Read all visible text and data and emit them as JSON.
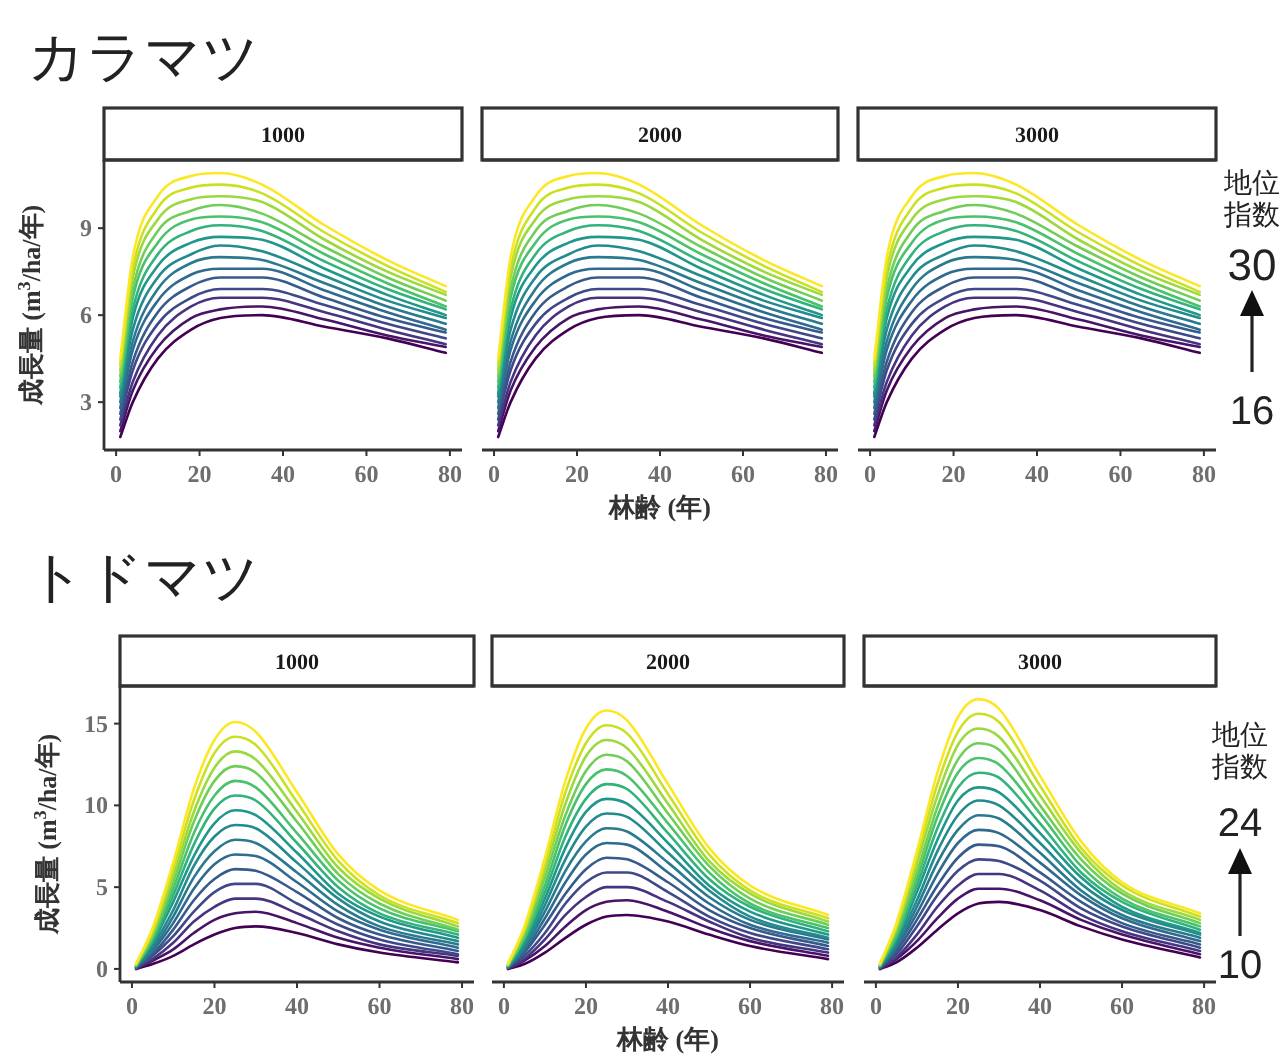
{
  "chart_data": [
    {
      "type": "line",
      "title": "1000",
      "ylabel": "成長量 (m$^{3}$/ha/年)",
      "annotations": [
        "カラマツ"
      ],
      "xlim": [
        -2.9,
        82.9
      ],
      "xticks": [
        0,
        20,
        40,
        60,
        80
      ],
      "ylim": [
        1.35,
        11.35
      ],
      "yticks": [
        3,
        6,
        9
      ],
      "x": [
        1,
        4,
        10,
        18,
        25,
        35,
        50,
        65,
        79
      ],
      "series": [
        {
          "color": "#440154",
          "values": [
            1.8,
            3.0,
            4.5,
            5.5,
            5.9,
            6.0,
            5.6,
            5.2,
            4.7
          ]
        },
        {
          "color": "#471467",
          "values": [
            2.0,
            3.4,
            4.9,
            5.9,
            6.2,
            6.3,
            5.85,
            5.3,
            4.9
          ]
        },
        {
          "color": "#463480",
          "values": [
            2.2,
            3.7,
            5.3,
            6.3,
            6.6,
            6.6,
            6.1,
            5.5,
            5.0
          ]
        },
        {
          "color": "#3f4889",
          "values": [
            2.4,
            4.1,
            5.7,
            6.6,
            6.9,
            6.9,
            6.35,
            5.7,
            5.2
          ]
        },
        {
          "color": "#375a8c",
          "values": [
            2.6,
            4.4,
            6.1,
            7.0,
            7.3,
            7.3,
            6.6,
            5.9,
            5.4
          ]
        },
        {
          "color": "#2f6b8e",
          "values": [
            2.8,
            4.8,
            6.5,
            7.4,
            7.6,
            7.6,
            6.85,
            6.1,
            5.5
          ]
        },
        {
          "color": "#297a8e",
          "values": [
            3.0,
            5.1,
            6.9,
            7.8,
            8.0,
            7.9,
            7.1,
            6.3,
            5.7
          ]
        },
        {
          "color": "#238a8d",
          "values": [
            3.2,
            5.5,
            7.3,
            8.1,
            8.4,
            8.2,
            7.35,
            6.5,
            5.9
          ]
        },
        {
          "color": "#1f988b",
          "values": [
            3.3,
            5.9,
            7.7,
            8.5,
            8.7,
            8.6,
            7.6,
            6.7,
            6.0
          ]
        },
        {
          "color": "#32b37b",
          "values": [
            3.5,
            6.2,
            8.1,
            8.9,
            9.1,
            8.9,
            7.85,
            6.9,
            6.2
          ]
        },
        {
          "color": "#4ac16d",
          "values": [
            3.7,
            6.6,
            8.5,
            9.3,
            9.4,
            9.2,
            8.1,
            7.1,
            6.3
          ]
        },
        {
          "color": "#70ce58",
          "values": [
            3.9,
            6.9,
            8.9,
            9.6,
            9.8,
            9.5,
            8.35,
            7.3,
            6.5
          ]
        },
        {
          "color": "#9bd93c",
          "values": [
            4.1,
            7.3,
            9.3,
            10.0,
            10.1,
            9.9,
            8.6,
            7.5,
            6.7
          ]
        },
        {
          "color": "#c9e121",
          "values": [
            4.3,
            7.6,
            9.7,
            10.4,
            10.5,
            10.2,
            8.85,
            7.7,
            6.8
          ]
        },
        {
          "color": "#fde725",
          "values": [
            4.5,
            8.0,
            10.1,
            10.8,
            10.9,
            10.5,
            9.1,
            7.9,
            7.0
          ]
        }
      ]
    },
    {
      "type": "line",
      "title": "2000",
      "xlabel": "林齢 (年)",
      "tick_labels": "x",
      "xlim": [
        -2.9,
        82.9
      ],
      "xticks": [
        0,
        20,
        40,
        60,
        80
      ],
      "ylim": [
        1.35,
        11.35
      ],
      "yticks": [
        3,
        6,
        9
      ],
      "x": [
        1,
        4,
        10,
        18,
        25,
        35,
        50,
        65,
        79
      ],
      "series": [
        {
          "color": "#440154",
          "values": [
            1.8,
            3.0,
            4.5,
            5.5,
            5.9,
            6.0,
            5.6,
            5.2,
            4.7
          ]
        },
        {
          "color": "#471467",
          "values": [
            2.0,
            3.4,
            4.9,
            5.9,
            6.2,
            6.3,
            5.85,
            5.3,
            4.9
          ]
        },
        {
          "color": "#463480",
          "values": [
            2.2,
            3.7,
            5.3,
            6.3,
            6.6,
            6.6,
            6.1,
            5.5,
            5.0
          ]
        },
        {
          "color": "#3f4889",
          "values": [
            2.4,
            4.1,
            5.7,
            6.6,
            6.9,
            6.9,
            6.35,
            5.7,
            5.2
          ]
        },
        {
          "color": "#375a8c",
          "values": [
            2.6,
            4.4,
            6.1,
            7.0,
            7.3,
            7.3,
            6.6,
            5.9,
            5.4
          ]
        },
        {
          "color": "#2f6b8e",
          "values": [
            2.8,
            4.8,
            6.5,
            7.4,
            7.6,
            7.6,
            6.85,
            6.1,
            5.5
          ]
        },
        {
          "color": "#297a8e",
          "values": [
            3.0,
            5.1,
            6.9,
            7.8,
            8.0,
            7.9,
            7.1,
            6.3,
            5.7
          ]
        },
        {
          "color": "#238a8d",
          "values": [
            3.2,
            5.5,
            7.3,
            8.1,
            8.4,
            8.2,
            7.35,
            6.5,
            5.9
          ]
        },
        {
          "color": "#1f988b",
          "values": [
            3.3,
            5.9,
            7.7,
            8.5,
            8.7,
            8.6,
            7.6,
            6.7,
            6.0
          ]
        },
        {
          "color": "#32b37b",
          "values": [
            3.5,
            6.2,
            8.1,
            8.9,
            9.1,
            8.9,
            7.85,
            6.9,
            6.2
          ]
        },
        {
          "color": "#4ac16d",
          "values": [
            3.7,
            6.6,
            8.5,
            9.3,
            9.4,
            9.2,
            8.1,
            7.1,
            6.3
          ]
        },
        {
          "color": "#70ce58",
          "values": [
            3.9,
            6.9,
            8.9,
            9.6,
            9.8,
            9.5,
            8.35,
            7.3,
            6.5
          ]
        },
        {
          "color": "#9bd93c",
          "values": [
            4.1,
            7.3,
            9.3,
            10.0,
            10.1,
            9.9,
            8.6,
            7.5,
            6.7
          ]
        },
        {
          "color": "#c9e121",
          "values": [
            4.3,
            7.6,
            9.7,
            10.4,
            10.5,
            10.2,
            8.85,
            7.7,
            6.8
          ]
        },
        {
          "color": "#fde725",
          "values": [
            4.5,
            8.0,
            10.1,
            10.8,
            10.9,
            10.5,
            9.1,
            7.9,
            7.0
          ]
        }
      ]
    },
    {
      "type": "line",
      "title": "3000",
      "tick_labels": "x",
      "annotations": [
        "地位指数",
        "30",
        "16"
      ],
      "xlim": [
        -2.9,
        82.9
      ],
      "xticks": [
        0,
        20,
        40,
        60,
        80
      ],
      "ylim": [
        1.35,
        11.35
      ],
      "yticks": [
        3,
        6,
        9
      ],
      "x": [
        1,
        4,
        10,
        18,
        25,
        35,
        50,
        65,
        79
      ],
      "series": [
        {
          "color": "#440154",
          "values": [
            1.8,
            3.0,
            4.5,
            5.5,
            5.9,
            6.0,
            5.6,
            5.2,
            4.7
          ]
        },
        {
          "color": "#471467",
          "values": [
            2.0,
            3.4,
            4.9,
            5.9,
            6.2,
            6.3,
            5.85,
            5.3,
            4.9
          ]
        },
        {
          "color": "#463480",
          "values": [
            2.2,
            3.7,
            5.3,
            6.3,
            6.6,
            6.6,
            6.1,
            5.5,
            5.0
          ]
        },
        {
          "color": "#3f4889",
          "values": [
            2.4,
            4.1,
            5.7,
            6.6,
            6.9,
            6.9,
            6.35,
            5.7,
            5.2
          ]
        },
        {
          "color": "#375a8c",
          "values": [
            2.6,
            4.4,
            6.1,
            7.0,
            7.3,
            7.3,
            6.6,
            5.9,
            5.4
          ]
        },
        {
          "color": "#2f6b8e",
          "values": [
            2.8,
            4.8,
            6.5,
            7.4,
            7.6,
            7.6,
            6.85,
            6.1,
            5.5
          ]
        },
        {
          "color": "#297a8e",
          "values": [
            3.0,
            5.1,
            6.9,
            7.8,
            8.0,
            7.9,
            7.1,
            6.3,
            5.7
          ]
        },
        {
          "color": "#238a8d",
          "values": [
            3.2,
            5.5,
            7.3,
            8.1,
            8.4,
            8.2,
            7.35,
            6.5,
            5.9
          ]
        },
        {
          "color": "#1f988b",
          "values": [
            3.3,
            5.9,
            7.7,
            8.5,
            8.7,
            8.6,
            7.6,
            6.7,
            6.0
          ]
        },
        {
          "color": "#32b37b",
          "values": [
            3.5,
            6.2,
            8.1,
            8.9,
            9.1,
            8.9,
            7.85,
            6.9,
            6.2
          ]
        },
        {
          "color": "#4ac16d",
          "values": [
            3.7,
            6.6,
            8.5,
            9.3,
            9.4,
            9.2,
            8.1,
            7.1,
            6.3
          ]
        },
        {
          "color": "#70ce58",
          "values": [
            3.9,
            6.9,
            8.9,
            9.6,
            9.8,
            9.5,
            8.35,
            7.3,
            6.5
          ]
        },
        {
          "color": "#9bd93c",
          "values": [
            4.1,
            7.3,
            9.3,
            10.0,
            10.1,
            9.9,
            8.6,
            7.5,
            6.7
          ]
        },
        {
          "color": "#c9e121",
          "values": [
            4.3,
            7.6,
            9.7,
            10.4,
            10.5,
            10.2,
            8.85,
            7.7,
            6.8
          ]
        },
        {
          "color": "#fde725",
          "values": [
            4.5,
            8.0,
            10.1,
            10.8,
            10.9,
            10.5,
            9.1,
            7.9,
            7.0
          ]
        }
      ]
    },
    {
      "type": "line",
      "title": "1000",
      "ylabel": "成長量 (m$^{3}$/ha/年)",
      "annotations": [
        "トドマツ"
      ],
      "xlim": [
        -2.9,
        82.9
      ],
      "xticks": [
        0,
        20,
        40,
        60,
        80
      ],
      "ylim": [
        -0.8,
        17.3
      ],
      "yticks": [
        0,
        5,
        10,
        15
      ],
      "x": [
        1,
        5,
        10,
        15,
        20,
        25,
        30,
        40,
        50,
        60,
        79
      ],
      "series": [
        {
          "color": "#440154",
          "values": [
            0,
            0.3,
            0.8,
            1.5,
            2.1,
            2.5,
            2.6,
            2.2,
            1.5,
            1.0,
            0.4
          ]
        },
        {
          "color": "#471467",
          "values": [
            0,
            0.5,
            1.2,
            2.2,
            3.0,
            3.4,
            3.5,
            2.8,
            1.9,
            1.3,
            0.6
          ]
        },
        {
          "color": "#463480",
          "values": [
            0,
            0.6,
            1.6,
            2.9,
            3.8,
            4.3,
            4.3,
            3.4,
            2.3,
            1.5,
            0.8
          ]
        },
        {
          "color": "#3f4889",
          "values": [
            0.1,
            0.8,
            2.0,
            3.5,
            4.7,
            5.2,
            5.2,
            4.0,
            2.7,
            1.8,
            0.9
          ]
        },
        {
          "color": "#375a8c",
          "values": [
            0.1,
            0.9,
            2.4,
            4.2,
            5.5,
            6.1,
            6.0,
            4.7,
            3.1,
            2.1,
            1.1
          ]
        },
        {
          "color": "#2f6b8e",
          "values": [
            0.1,
            1.1,
            2.8,
            4.9,
            6.4,
            7.0,
            6.9,
            5.3,
            3.5,
            2.4,
            1.3
          ]
        },
        {
          "color": "#297a8e",
          "values": [
            0.1,
            1.2,
            3.2,
            5.6,
            7.2,
            7.9,
            7.7,
            5.9,
            3.9,
            2.6,
            1.5
          ]
        },
        {
          "color": "#238a8d",
          "values": [
            0.1,
            1.4,
            3.6,
            6.3,
            8.1,
            8.8,
            8.6,
            6.5,
            4.3,
            2.9,
            1.7
          ]
        },
        {
          "color": "#1f988b",
          "values": [
            0.2,
            1.6,
            4.1,
            6.9,
            8.9,
            9.7,
            9.4,
            7.1,
            4.6,
            3.2,
            1.9
          ]
        },
        {
          "color": "#32b37b",
          "values": [
            0.2,
            1.7,
            4.5,
            7.6,
            9.8,
            10.6,
            10.3,
            7.7,
            5.0,
            3.4,
            2.1
          ]
        },
        {
          "color": "#4ac16d",
          "values": [
            0.2,
            1.9,
            4.9,
            8.3,
            10.6,
            11.5,
            11.1,
            8.3,
            5.4,
            3.7,
            2.3
          ]
        },
        {
          "color": "#70ce58",
          "values": [
            0.2,
            2.0,
            5.3,
            9.0,
            11.5,
            12.4,
            12.0,
            9.0,
            5.8,
            4.0,
            2.4
          ]
        },
        {
          "color": "#9bd93c",
          "values": [
            0.3,
            2.2,
            5.7,
            9.6,
            12.3,
            13.3,
            12.8,
            9.6,
            6.2,
            4.3,
            2.6
          ]
        },
        {
          "color": "#c9e121",
          "values": [
            0.3,
            2.3,
            6.1,
            10.3,
            13.2,
            14.2,
            13.7,
            10.2,
            6.6,
            4.5,
            2.8
          ]
        },
        {
          "color": "#fde725",
          "values": [
            0.3,
            2.5,
            6.5,
            11.0,
            14.0,
            15.1,
            14.5,
            10.8,
            7.0,
            4.8,
            3.0
          ]
        }
      ]
    },
    {
      "type": "line",
      "title": "2000",
      "xlabel": "林齢 (年)",
      "tick_labels": "x",
      "xlim": [
        -2.9,
        82.9
      ],
      "xticks": [
        0,
        20,
        40,
        60,
        80
      ],
      "ylim": [
        -0.8,
        17.3
      ],
      "yticks": [
        0,
        5,
        10,
        15
      ],
      "x": [
        1,
        5,
        10,
        15,
        20,
        25,
        30,
        40,
        50,
        60,
        79
      ],
      "series": [
        {
          "color": "#440154",
          "values": [
            0,
            0.3,
            1.0,
            1.9,
            2.7,
            3.2,
            3.3,
            2.9,
            2.1,
            1.4,
            0.6
          ]
        },
        {
          "color": "#471467",
          "values": [
            0,
            0.5,
            1.4,
            2.6,
            3.6,
            4.1,
            4.2,
            3.5,
            2.5,
            1.7,
            0.8
          ]
        },
        {
          "color": "#463480",
          "values": [
            0,
            0.6,
            1.8,
            3.3,
            4.4,
            5.0,
            5.0,
            4.1,
            2.9,
            1.9,
            1.0
          ]
        },
        {
          "color": "#3f4889",
          "values": [
            0.1,
            0.8,
            2.2,
            4.0,
            5.3,
            5.9,
            5.9,
            4.7,
            3.2,
            2.2,
            1.2
          ]
        },
        {
          "color": "#375a8c",
          "values": [
            0.1,
            1.0,
            2.7,
            4.6,
            6.1,
            6.8,
            6.7,
            5.3,
            3.6,
            2.5,
            1.4
          ]
        },
        {
          "color": "#2f6b8e",
          "values": [
            0.1,
            1.1,
            3.1,
            5.3,
            7.0,
            7.7,
            7.6,
            5.9,
            4.0,
            2.7,
            1.6
          ]
        },
        {
          "color": "#297a8e",
          "values": [
            0.1,
            1.3,
            3.5,
            6.0,
            7.8,
            8.6,
            8.4,
            6.5,
            4.4,
            3.0,
            1.8
          ]
        },
        {
          "color": "#238a8d",
          "values": [
            0.1,
            1.4,
            3.9,
            6.7,
            8.7,
            9.5,
            9.3,
            7.1,
            4.8,
            3.2,
            1.9
          ]
        },
        {
          "color": "#1f988b",
          "values": [
            0.2,
            1.6,
            4.3,
            7.4,
            9.6,
            10.4,
            10.1,
            7.7,
            5.1,
            3.5,
            2.1
          ]
        },
        {
          "color": "#32b37b",
          "values": [
            0.2,
            1.8,
            4.7,
            8.1,
            10.4,
            11.3,
            11.0,
            8.3,
            5.5,
            3.8,
            2.3
          ]
        },
        {
          "color": "#4ac16d",
          "values": [
            0.2,
            1.9,
            5.1,
            8.8,
            11.3,
            12.2,
            11.8,
            8.9,
            5.9,
            4.0,
            2.5
          ]
        },
        {
          "color": "#70ce58",
          "values": [
            0.2,
            2.1,
            5.6,
            9.4,
            12.1,
            13.1,
            12.7,
            9.5,
            6.3,
            4.3,
            2.7
          ]
        },
        {
          "color": "#9bd93c",
          "values": [
            0.3,
            2.3,
            6.0,
            10.1,
            13.0,
            14.0,
            13.5,
            10.1,
            6.6,
            4.6,
            2.9
          ]
        },
        {
          "color": "#c9e121",
          "values": [
            0.3,
            2.4,
            6.4,
            10.8,
            13.8,
            14.9,
            14.4,
            10.7,
            7.0,
            4.8,
            3.1
          ]
        },
        {
          "color": "#fde725",
          "values": [
            0.3,
            2.6,
            6.8,
            11.5,
            14.7,
            15.8,
            15.2,
            11.3,
            7.4,
            5.1,
            3.3
          ]
        }
      ]
    },
    {
      "type": "line",
      "title": "3000",
      "tick_labels": "x",
      "annotations": [
        "地位指数",
        "24",
        "10"
      ],
      "xlim": [
        -2.9,
        82.9
      ],
      "xticks": [
        0,
        20,
        40,
        60,
        80
      ],
      "ylim": [
        -0.8,
        17.3
      ],
      "yticks": [
        0,
        5,
        10,
        15
      ],
      "x": [
        1,
        5,
        10,
        15,
        20,
        25,
        30,
        40,
        50,
        60,
        79
      ],
      "series": [
        {
          "color": "#440154",
          "values": [
            0,
            0.4,
            1.3,
            2.4,
            3.4,
            4.0,
            4.1,
            3.6,
            2.6,
            1.8,
            0.7
          ]
        },
        {
          "color": "#471467",
          "values": [
            0,
            0.6,
            1.7,
            3.1,
            4.3,
            4.9,
            4.9,
            4.2,
            3.0,
            2.1,
            0.9
          ]
        },
        {
          "color": "#463480",
          "values": [
            0,
            0.7,
            2.1,
            3.8,
            5.1,
            5.8,
            5.8,
            4.8,
            3.3,
            2.3,
            1.1
          ]
        },
        {
          "color": "#3f4889",
          "values": [
            0.1,
            0.9,
            2.6,
            4.5,
            6.0,
            6.7,
            6.6,
            5.4,
            3.7,
            2.6,
            1.3
          ]
        },
        {
          "color": "#375a8c",
          "values": [
            0.1,
            1.1,
            3.0,
            5.1,
            6.8,
            7.6,
            7.5,
            5.9,
            4.1,
            2.8,
            1.5
          ]
        },
        {
          "color": "#2f6b8e",
          "values": [
            0.1,
            1.3,
            3.4,
            5.8,
            7.7,
            8.5,
            8.3,
            6.5,
            4.5,
            3.1,
            1.7
          ]
        },
        {
          "color": "#297a8e",
          "values": [
            0.1,
            1.4,
            3.8,
            6.5,
            8.5,
            9.4,
            9.2,
            7.1,
            4.8,
            3.3,
            1.9
          ]
        },
        {
          "color": "#238a8d",
          "values": [
            0.1,
            1.6,
            4.2,
            7.2,
            9.4,
            10.3,
            10.0,
            7.7,
            5.2,
            3.6,
            2.1
          ]
        },
        {
          "color": "#1f988b",
          "values": [
            0.2,
            1.8,
            4.7,
            7.9,
            10.3,
            11.1,
            10.8,
            8.3,
            5.6,
            3.8,
            2.2
          ]
        },
        {
          "color": "#32b37b",
          "values": [
            0.2,
            1.9,
            5.1,
            8.6,
            11.1,
            12.0,
            11.7,
            8.9,
            5.9,
            4.1,
            2.4
          ]
        },
        {
          "color": "#4ac16d",
          "values": [
            0.2,
            2.1,
            5.5,
            9.3,
            12.0,
            12.9,
            12.5,
            9.5,
            6.3,
            4.3,
            2.6
          ]
        },
        {
          "color": "#70ce58",
          "values": [
            0.2,
            2.3,
            5.9,
            9.9,
            12.8,
            13.8,
            13.4,
            10.0,
            6.7,
            4.6,
            2.8
          ]
        },
        {
          "color": "#9bd93c",
          "values": [
            0.3,
            2.5,
            6.4,
            10.6,
            13.7,
            14.7,
            14.2,
            10.6,
            7.1,
            4.8,
            3.0
          ]
        },
        {
          "color": "#c9e121",
          "values": [
            0.3,
            2.6,
            6.8,
            11.3,
            14.5,
            15.6,
            15.1,
            11.2,
            7.4,
            5.1,
            3.2
          ]
        },
        {
          "color": "#fde725",
          "values": [
            0.3,
            2.8,
            7.2,
            12.0,
            15.4,
            16.5,
            15.9,
            11.8,
            7.8,
            5.3,
            3.4
          ]
        }
      ]
    }
  ]
}
